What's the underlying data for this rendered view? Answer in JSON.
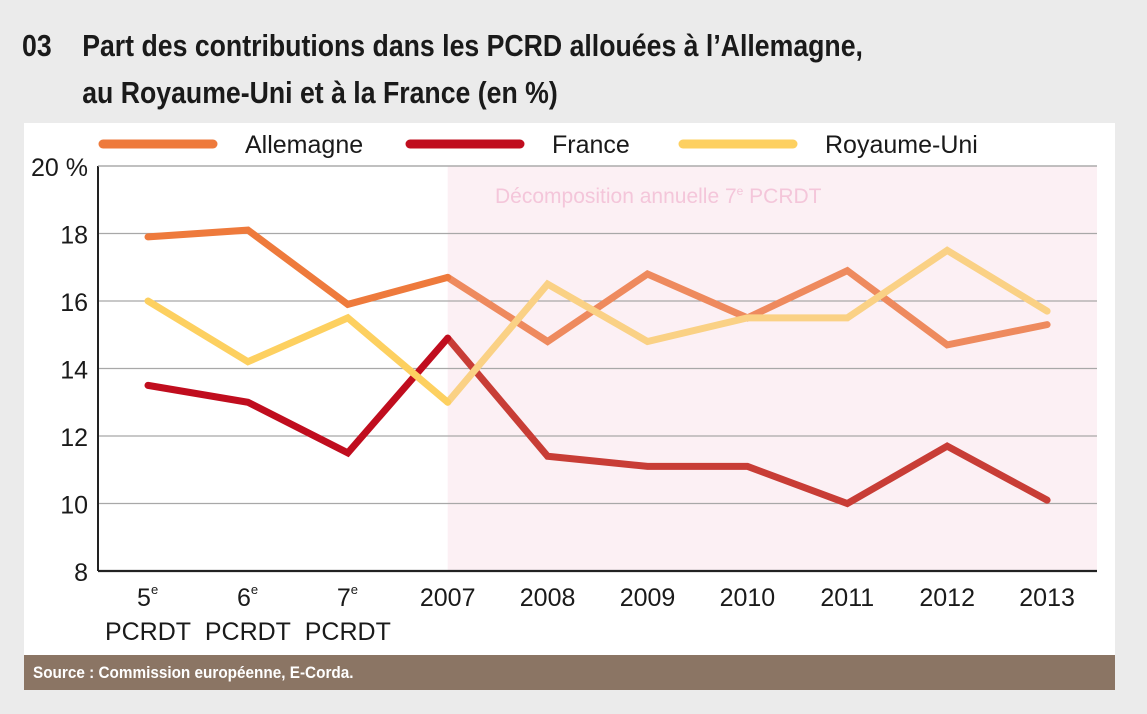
{
  "title": {
    "number": "03",
    "line1": "Part des contributions dans les PCRD allouées à l’Allemagne,",
    "line2": "au Royaume-Uni et à la France (en %)"
  },
  "source": "Source : Commission européenne, E-Corda.",
  "chart_data": {
    "type": "line",
    "categories": [
      "5e PCRDT",
      "6e PCRDT",
      "7e PCRDT",
      "2007",
      "2008",
      "2009",
      "2010",
      "2011",
      "2012",
      "2013"
    ],
    "category_labels": [
      [
        "5",
        "e",
        "PCRDT"
      ],
      [
        "6",
        "e",
        "PCRDT"
      ],
      [
        "7",
        "e",
        "PCRDT"
      ],
      [
        "2007"
      ],
      [
        "2008"
      ],
      [
        "2009"
      ],
      [
        "2010"
      ],
      [
        "2011"
      ],
      [
        "2012"
      ],
      [
        "2013"
      ]
    ],
    "y_ticks": [
      "20 %",
      "18",
      "16",
      "14",
      "12",
      "10",
      "8"
    ],
    "y_tick_values": [
      20,
      18,
      16,
      14,
      12,
      10,
      8
    ],
    "ylim": [
      8,
      20
    ],
    "grid": true,
    "legend_position": "top",
    "annotation": {
      "text": "Décomposition annuelle 7",
      "sup": "e",
      "text2": " PCRDT",
      "range": [
        "2007",
        "2013"
      ],
      "color": "#fcf0f4",
      "text_color": "#f4c6da"
    },
    "series": [
      {
        "name": "Allemagne",
        "color": "#ee7a3c",
        "shaded_color": "#ee8a5e",
        "values": [
          17.9,
          18.1,
          15.9,
          16.7,
          14.8,
          16.8,
          15.5,
          16.9,
          14.7,
          15.3
        ]
      },
      {
        "name": "France",
        "color": "#c00d1e",
        "shaded_color": "#c83d36",
        "values": [
          13.5,
          13.0,
          11.5,
          14.9,
          11.4,
          11.1,
          11.1,
          10.0,
          11.7,
          10.1
        ]
      },
      {
        "name": "Royaume-Uni",
        "color": "#fdd060",
        "shaded_color": "#fad185",
        "values": [
          16.0,
          14.2,
          15.5,
          13.0,
          16.5,
          14.8,
          15.5,
          15.5,
          17.5,
          15.7
        ]
      }
    ]
  }
}
